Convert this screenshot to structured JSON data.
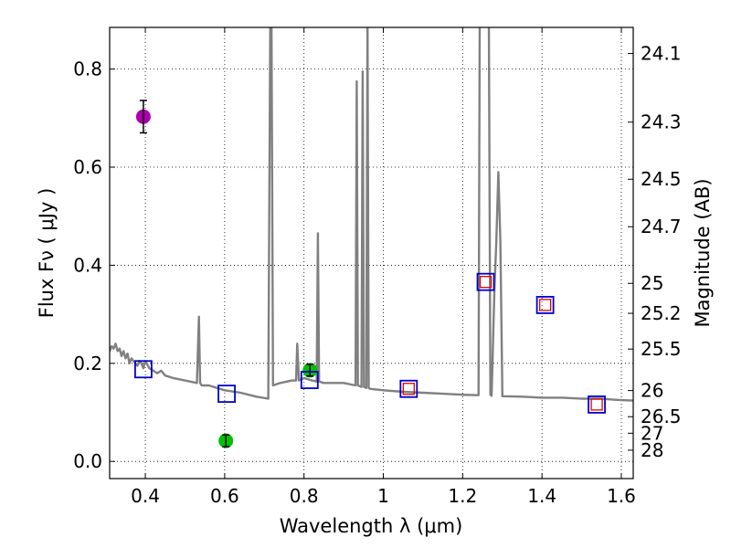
{
  "chart_data": {
    "type": "scatter",
    "title": "",
    "xlabel": "Wavelength  λ (μm)",
    "ylabel": "Flux  Fν  ( μJy )",
    "y2label": "Magnitude (AB)",
    "xlim": [
      0.31,
      1.63
    ],
    "ylim": [
      -0.035,
      0.885
    ],
    "grid": true,
    "xticks": [
      0.4,
      0.6,
      0.8,
      1.0,
      1.2,
      1.4,
      1.6
    ],
    "xtick_labels": [
      "0.4",
      "0.6",
      "0.8",
      "1",
      "1.2",
      "1.4",
      "1.6"
    ],
    "yticks": [
      0.0,
      0.2,
      0.4,
      0.6,
      0.8
    ],
    "ytick_labels": [
      "0.0",
      "0.2",
      "0.4",
      "0.6",
      "0.8"
    ],
    "y2ticks": [
      {
        "label": "24.1",
        "flux": 0.8318
      },
      {
        "label": "24.3",
        "flux": 0.6918
      },
      {
        "label": "24.5",
        "flux": 0.5754
      },
      {
        "label": "24.7",
        "flux": 0.4786
      },
      {
        "label": "25",
        "flux": 0.3631
      },
      {
        "label": "25.2",
        "flux": 0.302
      },
      {
        "label": "25.5",
        "flux": 0.2291
      },
      {
        "label": "26",
        "flux": 0.1445
      },
      {
        "label": "26.5",
        "flux": 0.0912
      },
      {
        "label": "27",
        "flux": 0.0575
      },
      {
        "label": "28",
        "flux": 0.0229
      }
    ],
    "series": [
      {
        "name": "model spectrum",
        "kind": "line",
        "color": "#808080",
        "x": [
          0.31,
          0.315,
          0.32,
          0.325,
          0.33,
          0.335,
          0.34,
          0.345,
          0.35,
          0.355,
          0.36,
          0.365,
          0.37,
          0.375,
          0.38,
          0.385,
          0.39,
          0.395,
          0.4,
          0.41,
          0.42,
          0.43,
          0.44,
          0.45,
          0.47,
          0.5,
          0.53,
          0.535,
          0.538,
          0.542,
          0.56,
          0.6,
          0.64,
          0.68,
          0.71,
          0.715,
          0.718,
          0.722,
          0.74,
          0.77,
          0.78,
          0.783,
          0.787,
          0.8,
          0.82,
          0.832,
          0.835,
          0.838,
          0.85,
          0.9,
          0.93,
          0.933,
          0.936,
          0.945,
          0.948,
          0.951,
          0.957,
          0.96,
          0.963,
          0.966,
          1.0,
          1.05,
          1.1,
          1.15,
          1.2,
          1.24,
          1.243,
          1.247,
          1.255,
          1.257,
          1.262,
          1.266,
          1.27,
          1.273,
          1.28,
          1.285,
          1.29,
          1.295,
          1.3,
          1.35,
          1.4,
          1.45,
          1.5,
          1.55,
          1.58,
          1.6,
          1.63
        ],
        "y": [
          0.225,
          0.235,
          0.23,
          0.24,
          0.225,
          0.23,
          0.215,
          0.225,
          0.21,
          0.22,
          0.2,
          0.21,
          0.205,
          0.2,
          0.195,
          0.205,
          0.2,
          0.19,
          0.205,
          0.19,
          0.185,
          0.18,
          0.185,
          0.175,
          0.17,
          0.165,
          0.16,
          0.295,
          0.16,
          0.155,
          0.155,
          0.145,
          0.14,
          0.132,
          0.128,
          0.9,
          0.9,
          0.155,
          0.16,
          0.165,
          0.165,
          0.24,
          0.165,
          0.17,
          0.165,
          0.163,
          0.465,
          0.163,
          0.16,
          0.16,
          0.155,
          0.775,
          0.155,
          0.152,
          0.795,
          0.152,
          0.15,
          0.9,
          0.15,
          0.148,
          0.145,
          0.142,
          0.14,
          0.138,
          0.136,
          0.135,
          0.9,
          0.9,
          0.9,
          0.9,
          0.9,
          0.9,
          0.136,
          0.134,
          0.35,
          0.45,
          0.59,
          0.45,
          0.133,
          0.132,
          0.13,
          0.13,
          0.128,
          0.128,
          0.126,
          0.125,
          0.124
        ]
      },
      {
        "name": "observed photometry",
        "kind": "marker",
        "color": "#00c000",
        "points": [
          {
            "x": 0.603,
            "y": 0.042,
            "yerr": 0.012
          },
          {
            "x": 0.815,
            "y": 0.186,
            "yerr": 0.012
          }
        ]
      },
      {
        "name": "observed photometry (blue band)",
        "kind": "marker",
        "color": "#aa00aa",
        "points": [
          {
            "x": 0.395,
            "y": 0.703,
            "yerr": 0.033
          }
        ]
      },
      {
        "name": "model photometry",
        "kind": "open-square",
        "color": "#0000cc",
        "points": [
          {
            "x": 0.395,
            "y": 0.188
          },
          {
            "x": 0.605,
            "y": 0.138
          },
          {
            "x": 0.814,
            "y": 0.166
          },
          {
            "x": 1.064,
            "y": 0.148
          },
          {
            "x": 1.258,
            "y": 0.366
          },
          {
            "x": 1.408,
            "y": 0.319
          },
          {
            "x": 1.538,
            "y": 0.116
          }
        ]
      },
      {
        "name": "model photometry (inner)",
        "kind": "open-square",
        "color": "#dd0000",
        "points": [
          {
            "x": 1.064,
            "y": 0.148
          },
          {
            "x": 1.258,
            "y": 0.366
          },
          {
            "x": 1.408,
            "y": 0.319
          },
          {
            "x": 1.538,
            "y": 0.116
          }
        ]
      }
    ]
  }
}
